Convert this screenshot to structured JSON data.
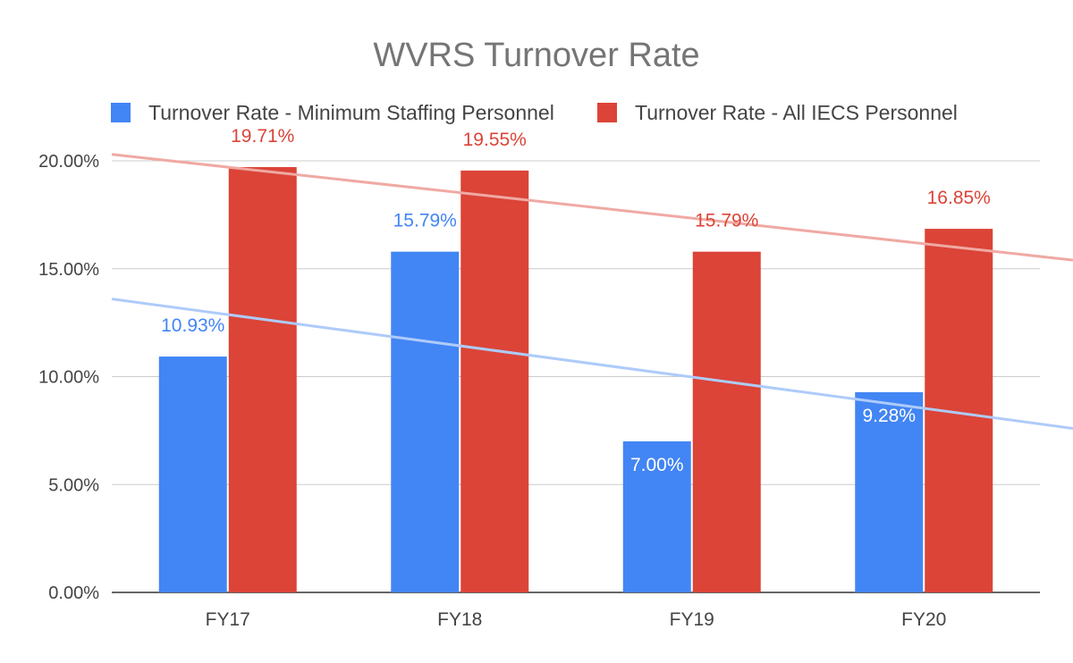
{
  "chart_data": {
    "type": "bar",
    "title": "WVRS Turnover Rate",
    "xlabel": "",
    "ylabel": "",
    "categories": [
      "FY17",
      "FY18",
      "FY19",
      "FY20"
    ],
    "ylim": [
      0,
      20
    ],
    "yticks": [
      0,
      5,
      10,
      15,
      20
    ],
    "ytick_labels": [
      "0.00%",
      "5.00%",
      "10.00%",
      "15.00%",
      "20.00%"
    ],
    "grid": true,
    "legend_position": "top",
    "series": [
      {
        "name": "Turnover Rate - Minimum Staffing Personnel",
        "color": "#4285f4",
        "trendline_color": "#aecbfa",
        "values": [
          10.93,
          15.79,
          7.0,
          9.28
        ],
        "labels": [
          "10.93%",
          "15.79%",
          "7.00%",
          "9.28%"
        ],
        "label_inside": [
          false,
          false,
          true,
          true
        ],
        "trendline": {
          "type": "linear",
          "start": 13.6,
          "end": 7.6
        }
      },
      {
        "name": "Turnover Rate - All IECS Personnel",
        "color": "#db4437",
        "trendline_color": "#f0a9a3",
        "values": [
          19.71,
          19.55,
          15.79,
          16.85
        ],
        "labels": [
          "19.71%",
          "19.55%",
          "15.79%",
          "16.85%"
        ],
        "label_inside": [
          false,
          false,
          false,
          false
        ],
        "trendline": {
          "type": "linear",
          "start": 20.3,
          "end": 15.4
        }
      }
    ]
  }
}
